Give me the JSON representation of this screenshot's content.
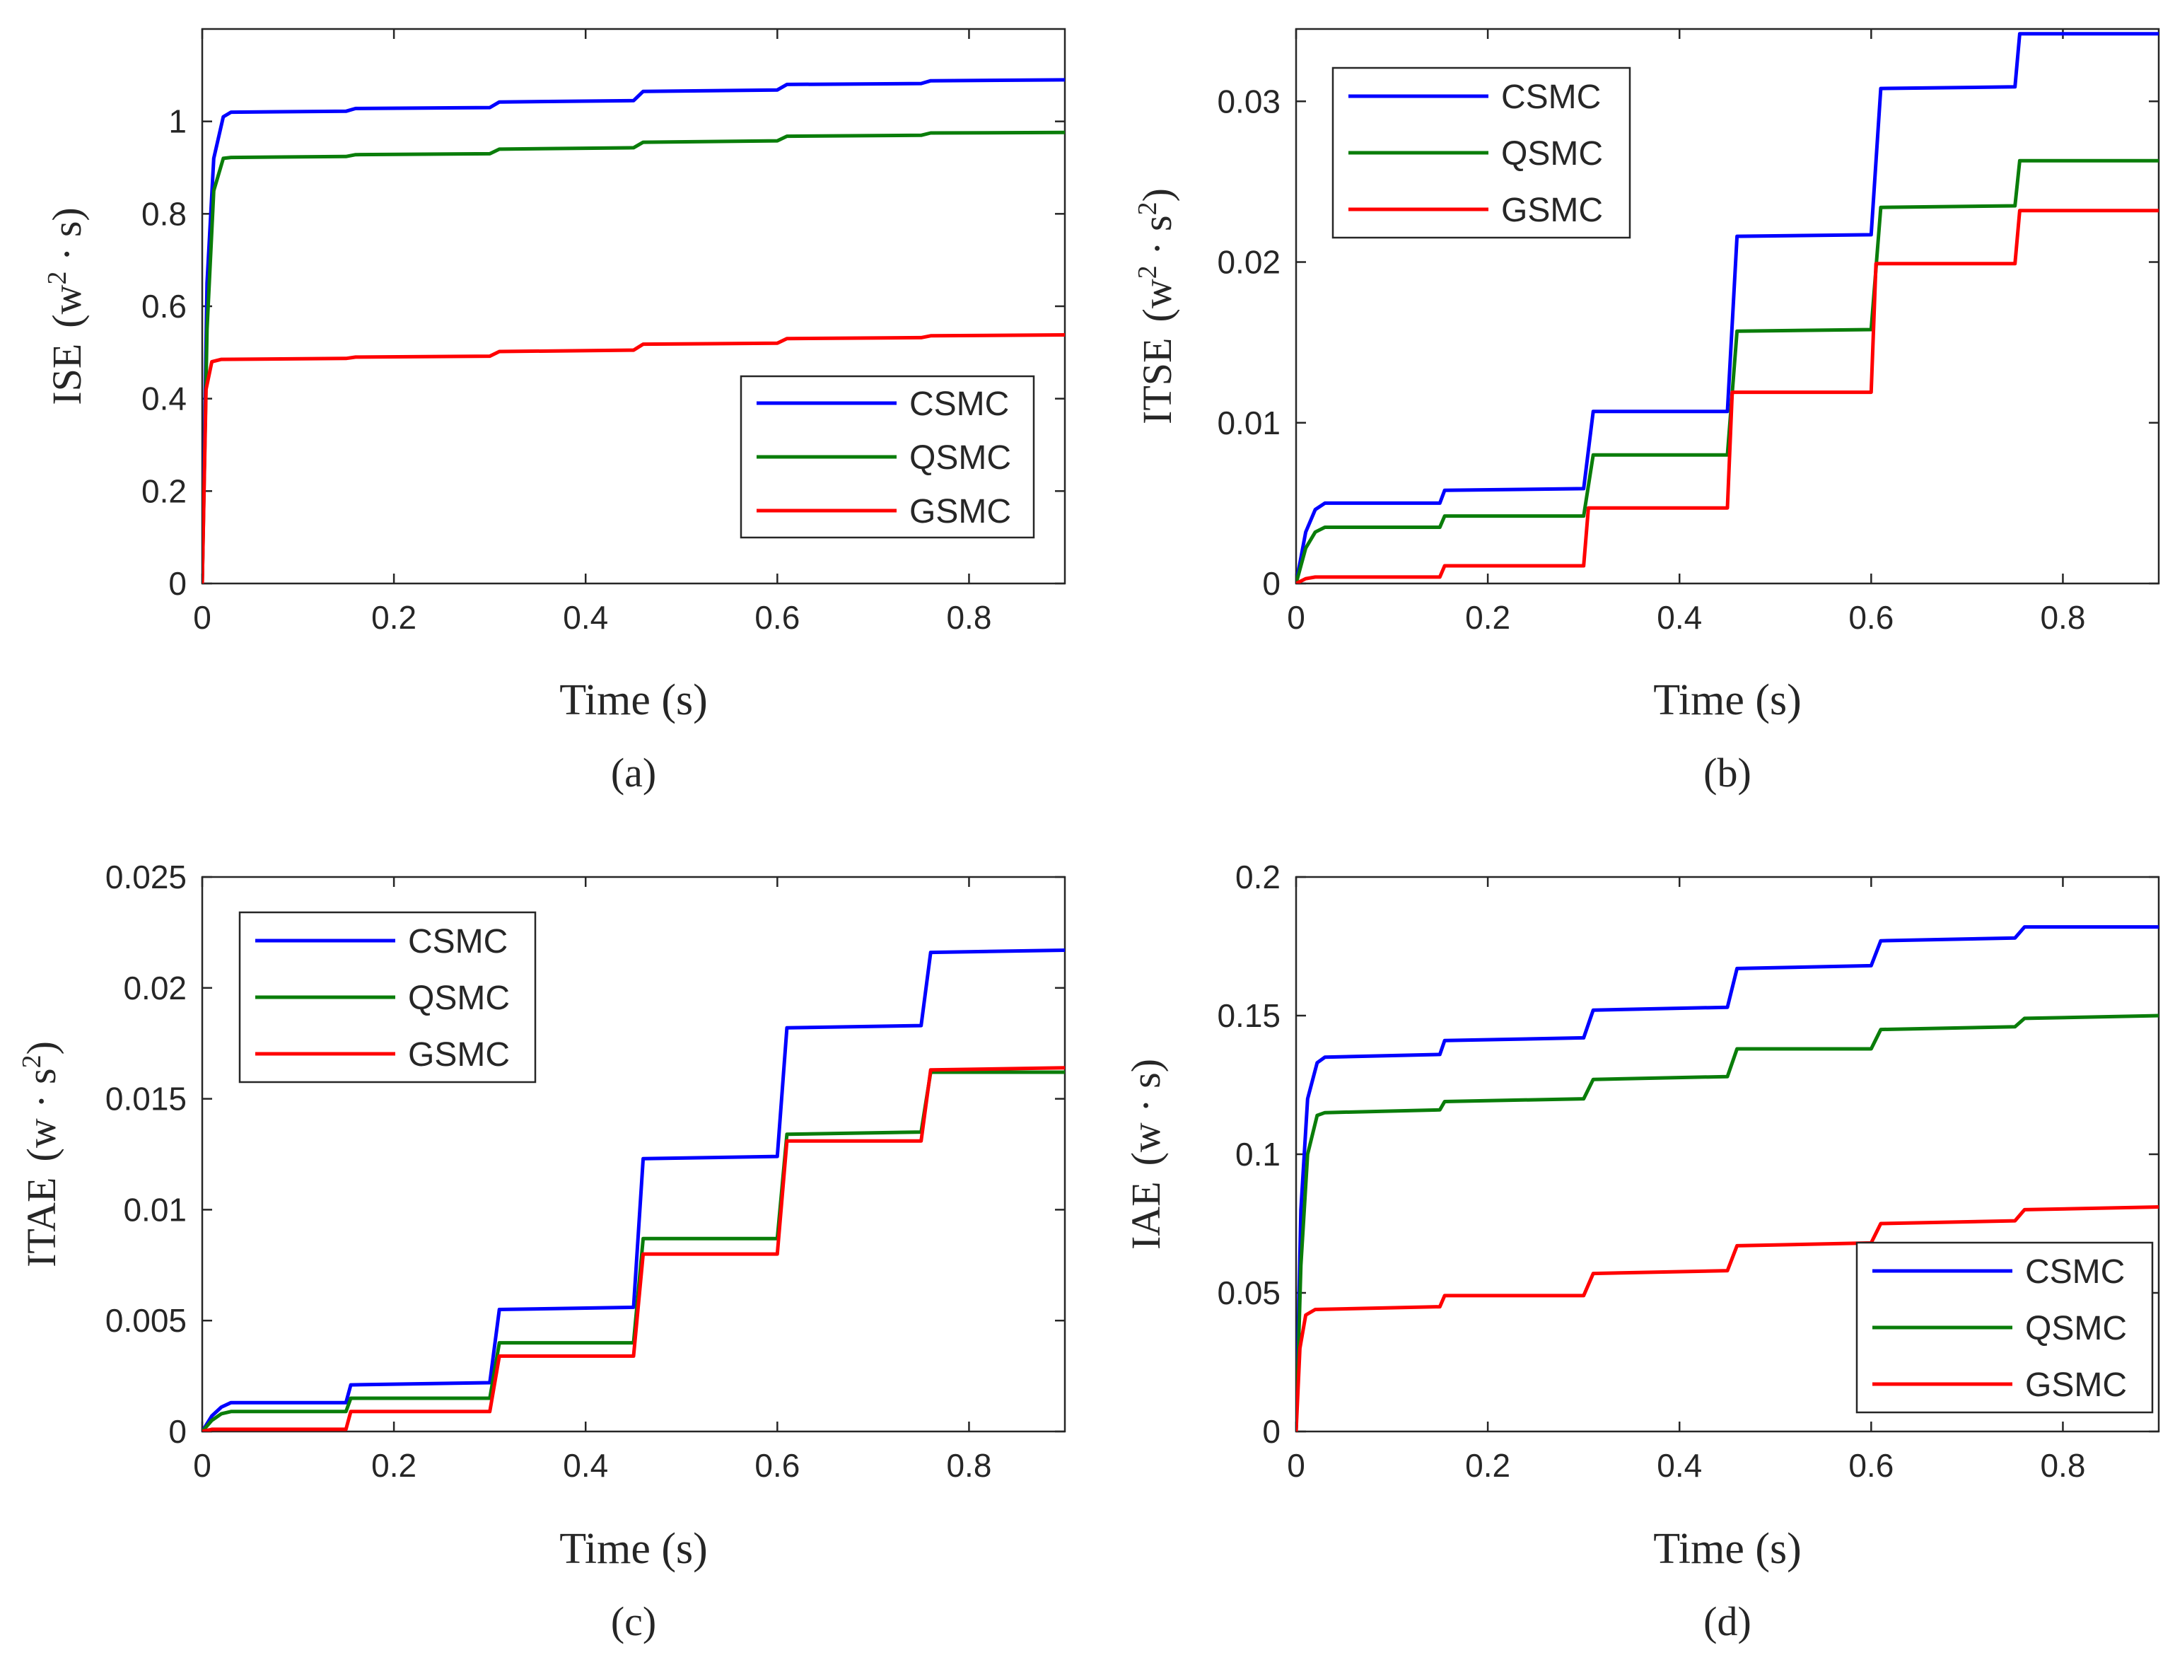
{
  "chart_data": [
    {
      "type": "line",
      "panel_label": "(a)",
      "title": "",
      "xlabel": "Time (s)",
      "ylabel_parts": [
        "ISE",
        "(w",
        "2",
        " · s)"
      ],
      "xlim": [
        0,
        0.9
      ],
      "ylim": [
        0,
        1.2
      ],
      "xticks": [
        0,
        0.2,
        0.4,
        0.6,
        0.8
      ],
      "xtick_labels": [
        "0",
        "0.2",
        "0.4",
        "0.6",
        "0.8"
      ],
      "yticks": [
        0,
        0.2,
        0.4,
        0.6,
        0.8,
        1
      ],
      "ytick_labels": [
        "0",
        "0.2",
        "0.4",
        "0.6",
        "0.8",
        "1"
      ],
      "legend_position": "bottom-right",
      "series": [
        {
          "name": "CSMC",
          "color": "#0000ff",
          "x": [
            0,
            0.005,
            0.012,
            0.022,
            0.03,
            0.15,
            0.16,
            0.3,
            0.31,
            0.45,
            0.46,
            0.6,
            0.61,
            0.75,
            0.76,
            0.9
          ],
          "y": [
            0,
            0.65,
            0.92,
            1.01,
            1.02,
            1.022,
            1.028,
            1.03,
            1.042,
            1.045,
            1.065,
            1.068,
            1.08,
            1.082,
            1.088,
            1.09
          ]
        },
        {
          "name": "QSMC",
          "color": "#0a7d0a",
          "x": [
            0,
            0.005,
            0.012,
            0.022,
            0.03,
            0.15,
            0.16,
            0.3,
            0.31,
            0.45,
            0.46,
            0.6,
            0.61,
            0.75,
            0.76,
            0.9
          ],
          "y": [
            0,
            0.55,
            0.85,
            0.92,
            0.922,
            0.924,
            0.928,
            0.93,
            0.94,
            0.943,
            0.955,
            0.958,
            0.968,
            0.97,
            0.975,
            0.976
          ]
        },
        {
          "name": "GSMC",
          "color": "#ff0000",
          "x": [
            0,
            0.004,
            0.01,
            0.02,
            0.15,
            0.16,
            0.3,
            0.31,
            0.45,
            0.46,
            0.6,
            0.61,
            0.75,
            0.76,
            0.9
          ],
          "y": [
            0,
            0.42,
            0.48,
            0.485,
            0.487,
            0.49,
            0.492,
            0.502,
            0.505,
            0.518,
            0.52,
            0.53,
            0.532,
            0.536,
            0.538
          ]
        }
      ]
    },
    {
      "type": "line",
      "panel_label": "(b)",
      "title": "",
      "xlabel": "Time (s)",
      "ylabel_parts": [
        "ITSE",
        "(w",
        "2",
        " · s",
        "2",
        ")"
      ],
      "xlim": [
        0,
        0.9
      ],
      "ylim": [
        0,
        0.0345
      ],
      "xticks": [
        0,
        0.2,
        0.4,
        0.6,
        0.8
      ],
      "xtick_labels": [
        "0",
        "0.2",
        "0.4",
        "0.6",
        "0.8"
      ],
      "yticks": [
        0,
        0.01,
        0.02,
        0.03
      ],
      "ytick_labels": [
        "0",
        "0.01",
        "0.02",
        "0.03"
      ],
      "legend_position": "top-left",
      "series": [
        {
          "name": "CSMC",
          "color": "#0000ff",
          "x": [
            0,
            0.01,
            0.02,
            0.03,
            0.15,
            0.155,
            0.3,
            0.31,
            0.45,
            0.46,
            0.6,
            0.61,
            0.75,
            0.755,
            0.9
          ],
          "y": [
            0,
            0.0032,
            0.0046,
            0.005,
            0.005,
            0.0058,
            0.0059,
            0.0107,
            0.0107,
            0.0216,
            0.0217,
            0.0308,
            0.0309,
            0.0342,
            0.0342
          ]
        },
        {
          "name": "QSMC",
          "color": "#0a7d0a",
          "x": [
            0,
            0.01,
            0.02,
            0.03,
            0.15,
            0.155,
            0.3,
            0.31,
            0.45,
            0.46,
            0.6,
            0.61,
            0.75,
            0.755,
            0.9
          ],
          "y": [
            0,
            0.0022,
            0.0032,
            0.0035,
            0.0035,
            0.0042,
            0.0042,
            0.008,
            0.008,
            0.0157,
            0.0158,
            0.0234,
            0.0235,
            0.0263,
            0.0263
          ]
        },
        {
          "name": "GSMC",
          "color": "#ff0000",
          "x": [
            0,
            0.01,
            0.02,
            0.15,
            0.155,
            0.3,
            0.305,
            0.45,
            0.455,
            0.6,
            0.605,
            0.75,
            0.755,
            0.9
          ],
          "y": [
            0,
            0.0003,
            0.0004,
            0.0004,
            0.0011,
            0.0011,
            0.0047,
            0.0047,
            0.0119,
            0.0119,
            0.0199,
            0.0199,
            0.0232,
            0.0232
          ]
        }
      ]
    },
    {
      "type": "line",
      "panel_label": "(c)",
      "title": "",
      "xlabel": "Time (s)",
      "ylabel_parts": [
        "ITAE",
        "(w · s",
        "2",
        ")"
      ],
      "xlim": [
        0,
        0.9
      ],
      "ylim": [
        0,
        0.025
      ],
      "xticks": [
        0,
        0.2,
        0.4,
        0.6,
        0.8
      ],
      "xtick_labels": [
        "0",
        "0.2",
        "0.4",
        "0.6",
        "0.8"
      ],
      "yticks": [
        0,
        0.005,
        0.01,
        0.015,
        0.02,
        0.025
      ],
      "ytick_labels": [
        "0",
        "0.005",
        "0.01",
        "0.015",
        "0.02",
        "0.025"
      ],
      "legend_position": "top-left",
      "series": [
        {
          "name": "CSMC",
          "color": "#0000ff",
          "x": [
            0,
            0.01,
            0.02,
            0.03,
            0.15,
            0.155,
            0.3,
            0.31,
            0.45,
            0.46,
            0.6,
            0.61,
            0.75,
            0.76,
            0.9
          ],
          "y": [
            0,
            0.0007,
            0.0011,
            0.0013,
            0.0013,
            0.0021,
            0.0022,
            0.0055,
            0.0056,
            0.0123,
            0.0124,
            0.0182,
            0.0183,
            0.0216,
            0.0217
          ]
        },
        {
          "name": "QSMC",
          "color": "#0a7d0a",
          "x": [
            0,
            0.01,
            0.02,
            0.03,
            0.15,
            0.155,
            0.3,
            0.31,
            0.45,
            0.46,
            0.6,
            0.61,
            0.75,
            0.76,
            0.9
          ],
          "y": [
            0,
            0.0005,
            0.0008,
            0.0009,
            0.0009,
            0.0015,
            0.0015,
            0.004,
            0.004,
            0.0087,
            0.0087,
            0.0134,
            0.0135,
            0.0162,
            0.0162
          ]
        },
        {
          "name": "GSMC",
          "color": "#ff0000",
          "x": [
            0,
            0.01,
            0.02,
            0.15,
            0.155,
            0.3,
            0.31,
            0.45,
            0.46,
            0.6,
            0.61,
            0.75,
            0.76,
            0.9
          ],
          "y": [
            0,
            0.0001,
            0.0001,
            0.0001,
            0.0009,
            0.0009,
            0.0034,
            0.0034,
            0.008,
            0.008,
            0.0131,
            0.0131,
            0.0163,
            0.0164
          ]
        }
      ]
    },
    {
      "type": "line",
      "panel_label": "(d)",
      "title": "",
      "xlabel": "Time (s)",
      "ylabel_parts": [
        "IAE",
        "(w · s)"
      ],
      "xlim": [
        0,
        0.9
      ],
      "ylim": [
        0,
        0.2
      ],
      "xticks": [
        0,
        0.2,
        0.4,
        0.6,
        0.8
      ],
      "xtick_labels": [
        "0",
        "0.2",
        "0.4",
        "0.6",
        "0.8"
      ],
      "yticks": [
        0,
        0.05,
        0.1,
        0.15,
        0.2
      ],
      "ytick_labels": [
        "0",
        "0.05",
        "0.1",
        "0.15",
        "0.2"
      ],
      "legend_position": "bottom-right",
      "series": [
        {
          "name": "CSMC",
          "color": "#0000ff",
          "x": [
            0,
            0.005,
            0.012,
            0.022,
            0.03,
            0.15,
            0.155,
            0.3,
            0.31,
            0.45,
            0.46,
            0.6,
            0.61,
            0.75,
            0.76,
            0.9
          ],
          "y": [
            0,
            0.08,
            0.12,
            0.133,
            0.135,
            0.136,
            0.141,
            0.142,
            0.152,
            0.153,
            0.167,
            0.168,
            0.177,
            0.178,
            0.182,
            0.182
          ]
        },
        {
          "name": "QSMC",
          "color": "#0a7d0a",
          "x": [
            0,
            0.005,
            0.012,
            0.022,
            0.03,
            0.15,
            0.155,
            0.3,
            0.31,
            0.45,
            0.46,
            0.6,
            0.61,
            0.75,
            0.76,
            0.9
          ],
          "y": [
            0,
            0.06,
            0.1,
            0.114,
            0.115,
            0.116,
            0.119,
            0.12,
            0.127,
            0.128,
            0.138,
            0.138,
            0.145,
            0.146,
            0.149,
            0.15
          ]
        },
        {
          "name": "GSMC",
          "color": "#ff0000",
          "x": [
            0,
            0.004,
            0.01,
            0.02,
            0.15,
            0.155,
            0.3,
            0.31,
            0.45,
            0.46,
            0.6,
            0.61,
            0.75,
            0.76,
            0.9
          ],
          "y": [
            0,
            0.03,
            0.042,
            0.044,
            0.045,
            0.049,
            0.049,
            0.057,
            0.058,
            0.067,
            0.068,
            0.075,
            0.076,
            0.08,
            0.081
          ]
        }
      ]
    }
  ]
}
